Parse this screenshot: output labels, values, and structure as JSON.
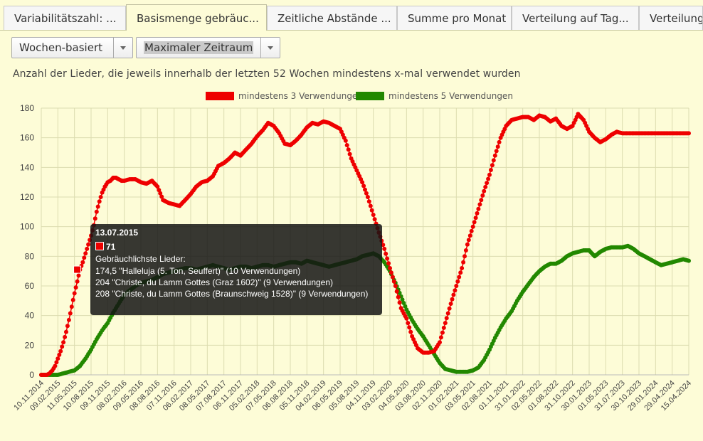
{
  "tabs": [
    {
      "label": "Variabilitätszahl: ...",
      "active": false
    },
    {
      "label": "Basismenge gebräuc...",
      "active": true
    },
    {
      "label": "Zeitliche Abstände ...",
      "active": false
    },
    {
      "label": "Summe pro Monat",
      "active": false
    },
    {
      "label": "Verteilung auf Tag...",
      "active": false
    },
    {
      "label": "Verteilung",
      "active": false
    }
  ],
  "controls": {
    "mode_select": "Wochen-basiert",
    "range_select": "Maximaler Zeitraum"
  },
  "heading": "Anzahl der Lieder, die jeweils innerhalb der letzten 52 Wochen mindestens x-mal verwendet wurden",
  "colors": {
    "red": "#ee0000",
    "green": "#228800",
    "grid": "#dcdcb0"
  },
  "tooltip": {
    "date": "13.07.2015",
    "value": "71",
    "caption": "Gebräuchlichste Lieder:",
    "lines": [
      "174,5 \"Halleluja (5. Ton, Seuffert)\" (10 Verwendungen)",
      "204 \"Christe, du Lamm Gottes (Graz 1602)\" (9 Verwendungen)",
      "208 \"Christe, du Lamm Gottes (Braunschweig 1528)\" (9 Verwendungen)"
    ]
  },
  "chart_data": {
    "type": "line",
    "title": "",
    "xlabel": "",
    "ylabel": "",
    "ylim": [
      0,
      180
    ],
    "yticks": [
      0,
      20,
      40,
      60,
      80,
      100,
      120,
      140,
      160,
      180
    ],
    "grid": true,
    "legend_position": "top",
    "x_tick_labels": [
      "10.11.2014",
      "09.02.2015",
      "11.05.2015",
      "10.08.2015",
      "09.11.2015",
      "08.02.2016",
      "09.05.2016",
      "08.08.2016",
      "07.11.2016",
      "06.02.2017",
      "08.05.2017",
      "07.08.2017",
      "06.11.2017",
      "05.02.2018",
      "07.05.2018",
      "06.08.2018",
      "05.11.2018",
      "04.02.2019",
      "06.05.2019",
      "05.08.2019",
      "04.11.2019",
      "03.02.2020",
      "04.05.2020",
      "03.08.2020",
      "02.11.2020",
      "01.02.2021",
      "03.05.2021",
      "02.08.2021",
      "01.11.2021",
      "31.01.2022",
      "02.05.2022",
      "01.08.2022",
      "31.10.2022",
      "30.01.2023",
      "01.05.2023",
      "31.07.2023",
      "30.10.2023",
      "29.01.2024",
      "29.04.2024",
      "15.04.2024"
    ],
    "x_index_note_values": [
      0,
      6,
      12,
      18,
      24,
      30,
      36,
      42,
      48,
      54,
      60,
      66,
      72,
      78,
      84,
      90,
      96,
      102,
      108,
      114,
      120,
      126,
      132,
      138,
      144,
      150,
      156,
      162,
      168,
      174,
      180,
      186,
      192,
      198,
      204,
      210,
      216,
      222,
      228,
      234
    ],
    "series": [
      {
        "name": "mindestens 3 Verwendungen",
        "color": "#ee0000",
        "x": [
          0,
          2,
          3,
          4,
          5,
          6,
          7,
          8,
          9,
          10,
          11,
          12,
          13,
          14,
          15,
          16,
          17,
          18,
          19,
          20,
          21,
          22,
          23,
          24,
          25,
          26,
          27,
          28,
          29,
          30,
          32,
          34,
          36,
          38,
          40,
          42,
          44,
          46,
          48,
          50,
          52,
          54,
          56,
          58,
          60,
          62,
          64,
          66,
          68,
          70,
          72,
          74,
          76,
          78,
          80,
          82,
          84,
          86,
          88,
          90,
          92,
          94,
          96,
          98,
          100,
          102,
          104,
          106,
          108,
          110,
          112,
          114,
          116,
          118,
          120,
          122,
          124,
          126,
          128,
          130,
          132,
          134,
          136,
          138,
          140,
          142,
          144,
          146,
          148,
          150,
          152,
          154,
          156,
          158,
          160,
          162,
          164,
          166,
          168,
          170,
          172,
          174,
          176,
          178,
          180,
          182,
          184,
          186,
          188,
          190,
          192,
          194,
          196,
          198,
          200,
          202,
          204,
          206,
          208,
          210,
          212,
          214,
          216,
          218,
          220,
          222,
          224,
          226,
          228,
          230,
          232,
          234
        ],
        "values": [
          0,
          0,
          1,
          3,
          6,
          11,
          16,
          22,
          29,
          37,
          46,
          55,
          63,
          71,
          76,
          82,
          88,
          94,
          101,
          110,
          117,
          123,
          127,
          130,
          131,
          133,
          133,
          132,
          131,
          131,
          132,
          132,
          130,
          129,
          131,
          127,
          118,
          116,
          115,
          114,
          118,
          122,
          127,
          130,
          131,
          134,
          141,
          143,
          146,
          150,
          148,
          152,
          156,
          161,
          165,
          170,
          168,
          163,
          156,
          155,
          158,
          162,
          167,
          170,
          169,
          171,
          170,
          168,
          166,
          158,
          146,
          138,
          130,
          120,
          108,
          96,
          85,
          72,
          60,
          45,
          38,
          26,
          18,
          15,
          15,
          16,
          22,
          35,
          48,
          60,
          72,
          88,
          100,
          112,
          124,
          135,
          148,
          160,
          168,
          172,
          173,
          174,
          174,
          172,
          175,
          174,
          171,
          173,
          168,
          166,
          168,
          176,
          172,
          164,
          160,
          157,
          159,
          162,
          164,
          163,
          163,
          163,
          163,
          163,
          163,
          163,
          163,
          163,
          163,
          163,
          163,
          163
        ],
        "values_red_note": []
      },
      {
        "name": "mindestens 5 Verwendungen",
        "color": "#228800",
        "x": [
          0,
          2,
          4,
          6,
          8,
          10,
          12,
          14,
          16,
          18,
          20,
          22,
          24,
          26,
          28,
          30,
          32,
          34,
          36,
          38,
          40,
          42,
          44,
          46,
          48,
          50,
          52,
          54,
          56,
          58,
          60,
          62,
          64,
          66,
          68,
          70,
          72,
          74,
          76,
          78,
          80,
          82,
          84,
          86,
          88,
          90,
          92,
          94,
          96,
          98,
          100,
          102,
          104,
          106,
          108,
          110,
          112,
          114,
          116,
          118,
          120,
          122,
          124,
          126,
          128,
          130,
          132,
          134,
          136,
          138,
          140,
          142,
          144,
          146,
          148,
          150,
          152,
          154,
          156,
          158,
          160,
          162,
          164,
          166,
          168,
          170,
          172,
          174,
          176,
          178,
          180,
          182,
          184,
          186,
          188,
          190,
          192,
          194,
          196,
          198,
          200,
          202,
          204,
          206,
          208,
          210,
          212,
          214,
          216,
          218,
          220,
          222,
          224,
          226,
          228,
          230,
          232,
          234
        ],
        "values": [
          0,
          0,
          0,
          0,
          1,
          2,
          3,
          6,
          11,
          17,
          24,
          30,
          35,
          42,
          48,
          54,
          57,
          60,
          62,
          63,
          64,
          66,
          68,
          69,
          70,
          71,
          72,
          72,
          71,
          72,
          73,
          74,
          73,
          72,
          71,
          72,
          73,
          73,
          72,
          73,
          74,
          74,
          73,
          74,
          75,
          76,
          76,
          75,
          77,
          76,
          75,
          74,
          73,
          74,
          75,
          76,
          77,
          78,
          80,
          81,
          82,
          80,
          76,
          70,
          62,
          53,
          44,
          37,
          31,
          26,
          20,
          14,
          8,
          4,
          3,
          2,
          2,
          2,
          3,
          5,
          10,
          17,
          25,
          32,
          38,
          43,
          50,
          56,
          61,
          66,
          70,
          73,
          75,
          75,
          77,
          80,
          82,
          83,
          84,
          84,
          80,
          83,
          85,
          86,
          86,
          86,
          87,
          85,
          82,
          80,
          78,
          76,
          74,
          75,
          76,
          77,
          78,
          77
        ],
        "values_green_note": []
      }
    ]
  }
}
